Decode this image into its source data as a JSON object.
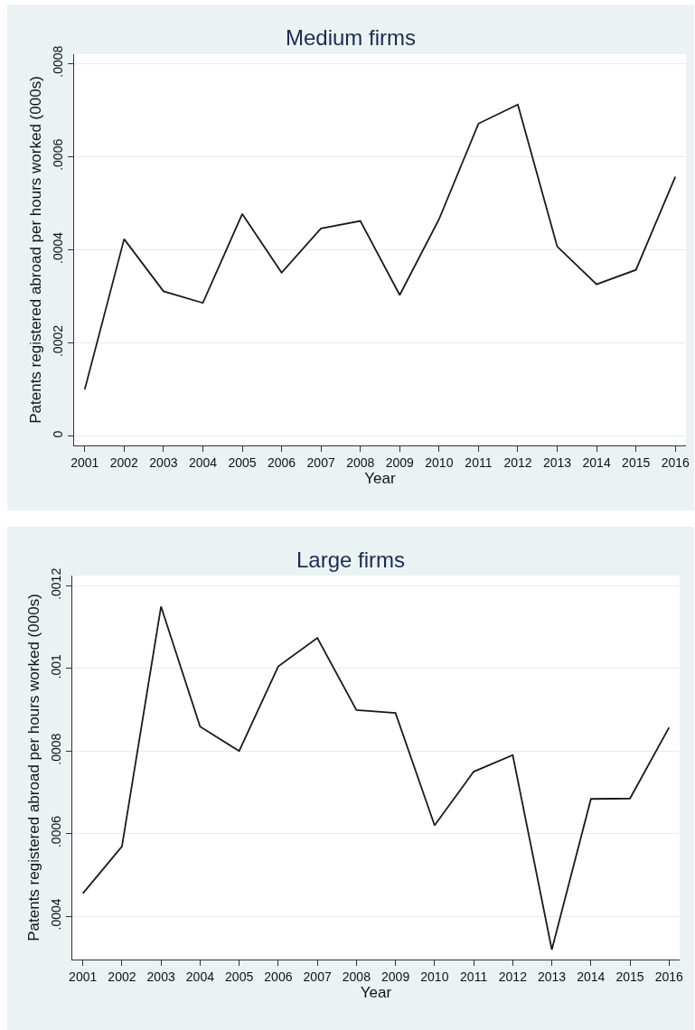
{
  "chart_data": [
    {
      "type": "line",
      "title": "Medium firms",
      "xlabel": "Year",
      "ylabel": "Patents registered abroad per hours worked (000s)",
      "color": "#1a1a1a",
      "x": [
        2001,
        2002,
        2003,
        2004,
        2005,
        2006,
        2007,
        2008,
        2009,
        2010,
        2011,
        2012,
        2013,
        2014,
        2015,
        2016
      ],
      "values": [
        0.0001,
        0.000423,
        0.000311,
        0.000286,
        0.000477,
        0.000351,
        0.000446,
        0.000462,
        0.000303,
        0.000466,
        0.000671,
        0.000712,
        0.000407,
        0.000326,
        0.000357,
        0.000557
      ],
      "xlim": [
        2000.73,
        2016.27
      ],
      "xticks": [
        2001,
        2002,
        2003,
        2004,
        2005,
        2006,
        2007,
        2008,
        2009,
        2010,
        2011,
        2012,
        2013,
        2014,
        2015,
        2016
      ],
      "ylim": [
        -2e-05,
        0.00082
      ],
      "yticks": [
        0,
        {
          "value": 0.0002,
          "label": ".0002"
        },
        {
          "value": 0.0004,
          "label": ".0004"
        },
        {
          "value": 0.0006,
          "label": ".0006"
        },
        {
          "value": 0.0008,
          "label": ".0008"
        }
      ],
      "grid": "y"
    },
    {
      "type": "line",
      "title": "Large firms",
      "xlabel": "Year",
      "ylabel": "Patents registered abroad per hours worked (000s)",
      "color": "#1a1a1a",
      "x": [
        2001,
        2002,
        2003,
        2004,
        2005,
        2006,
        2007,
        2008,
        2009,
        2010,
        2011,
        2012,
        2013,
        2014,
        2015,
        2016
      ],
      "values": [
        0.000455,
        0.000569,
        0.00115,
        0.000859,
        0.0008,
        0.001005,
        0.001074,
        0.000899,
        0.000892,
        0.00062,
        0.00075,
        0.00079,
        0.000319,
        0.000684,
        0.000685,
        0.000857
      ],
      "xlim": [
        2000.73,
        2016.27
      ],
      "xticks": [
        2001,
        2002,
        2003,
        2004,
        2005,
        2006,
        2007,
        2008,
        2009,
        2010,
        2011,
        2012,
        2013,
        2014,
        2015,
        2016
      ],
      "ylim": [
        0.000295,
        0.001225
      ],
      "yticks": [
        {
          "value": 0.0004,
          "label": ".0004"
        },
        {
          "value": 0.0006,
          "label": ".0006"
        },
        {
          "value": 0.0008,
          "label": ".0008"
        },
        {
          "value": 0.001,
          "label": ".001"
        },
        {
          "value": 0.0012,
          "label": ".0012"
        }
      ],
      "grid": "y"
    }
  ]
}
